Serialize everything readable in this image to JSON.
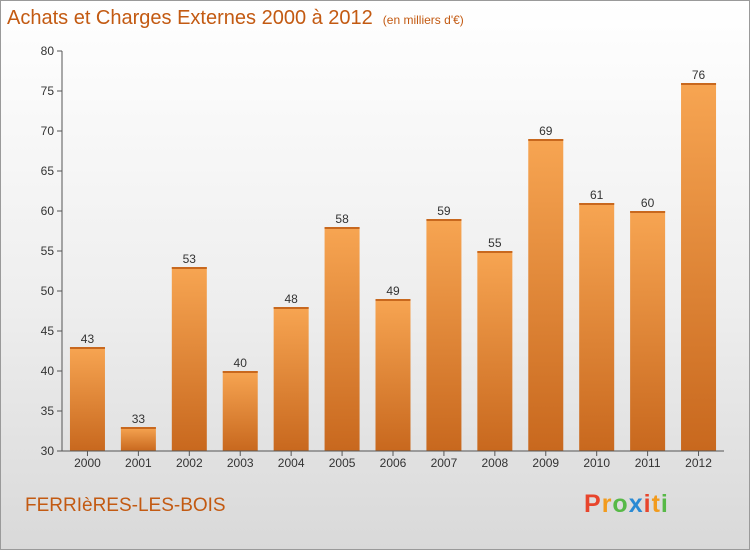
{
  "title": "Achats et Charges Externes 2000 à 2012",
  "unit": "(en milliers d'€)",
  "commune": "FERRIèRES-LES-BOIS",
  "brand": {
    "letters": [
      "P",
      "r",
      "o",
      "x",
      "i",
      "t",
      "i"
    ],
    "colors": [
      "#e8452c",
      "#f29b1d",
      "#57b947",
      "#2a8ad4",
      "#e8452c",
      "#f29b1d",
      "#57b947"
    ]
  },
  "colors": {
    "accent": "#c35a12",
    "bar_light": "#f7a552",
    "bar_dark": "#c8681e"
  },
  "chart_data": {
    "type": "bar",
    "title": "Achats et Charges Externes 2000 à 2012",
    "subtitle": "(en milliers d'€)",
    "xlabel": "",
    "ylabel": "",
    "categories": [
      "2000",
      "2001",
      "2002",
      "2003",
      "2004",
      "2005",
      "2006",
      "2007",
      "2008",
      "2009",
      "2010",
      "2011",
      "2012"
    ],
    "values": [
      43,
      33,
      53,
      40,
      48,
      58,
      49,
      59,
      55,
      69,
      61,
      60,
      76
    ],
    "ylim": [
      30,
      80
    ],
    "yticks": [
      30,
      35,
      40,
      45,
      50,
      55,
      60,
      65,
      70,
      75,
      80
    ],
    "grid": false,
    "legend": "none"
  }
}
